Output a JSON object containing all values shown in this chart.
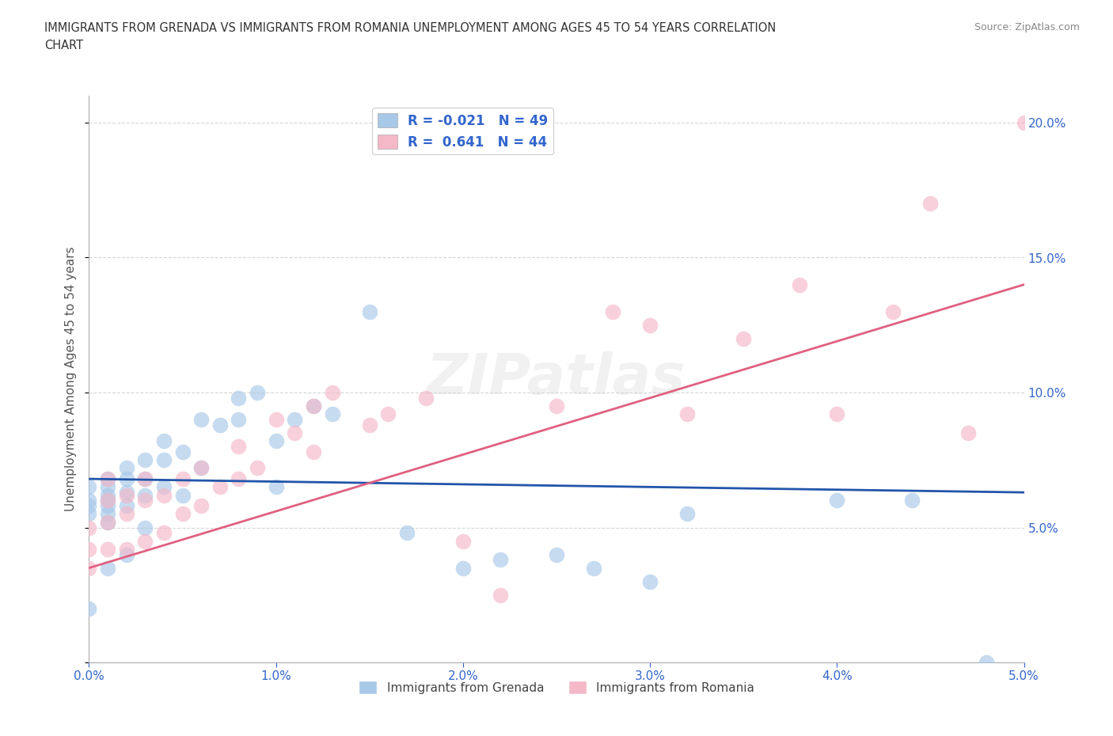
{
  "title": "IMMIGRANTS FROM GRENADA VS IMMIGRANTS FROM ROMANIA UNEMPLOYMENT AMONG AGES 45 TO 54 YEARS CORRELATION\nCHART",
  "source_text": "Source: ZipAtlas.com",
  "ylabel": "Unemployment Among Ages 45 to 54 years",
  "xlim": [
    0.0,
    0.05
  ],
  "ylim": [
    0.0,
    0.21
  ],
  "xticks": [
    0.0,
    0.01,
    0.02,
    0.03,
    0.04,
    0.05
  ],
  "yticks": [
    0.0,
    0.05,
    0.1,
    0.15,
    0.2
  ],
  "ytick_labels": [
    "",
    "5.0%",
    "10.0%",
    "15.0%",
    "20.0%"
  ],
  "xtick_labels": [
    "0.0%",
    "1.0%",
    "2.0%",
    "3.0%",
    "4.0%",
    "5.0%"
  ],
  "grenada_color": "#a8c8e8",
  "romania_color": "#f4b8c8",
  "grenada_line_color": "#2255aa",
  "romania_line_color": "#e06080",
  "R_grenada": -0.021,
  "N_grenada": 49,
  "R_romania": 0.641,
  "N_romania": 44,
  "watermark": "ZIPatlas",
  "background_color": "#ffffff",
  "grid_color": "#bbbbbb",
  "title_color": "#333333",
  "axis_label_color": "#3366cc",
  "grenada_scatter_x": [
    0.0,
    0.0,
    0.0,
    0.0,
    0.0,
    0.001,
    0.001,
    0.001,
    0.001,
    0.001,
    0.001,
    0.001,
    0.001,
    0.002,
    0.002,
    0.002,
    0.002,
    0.002,
    0.003,
    0.003,
    0.003,
    0.003,
    0.004,
    0.004,
    0.004,
    0.005,
    0.005,
    0.006,
    0.006,
    0.007,
    0.008,
    0.008,
    0.009,
    0.01,
    0.01,
    0.011,
    0.012,
    0.013,
    0.015,
    0.017,
    0.02,
    0.022,
    0.025,
    0.027,
    0.03,
    0.032,
    0.04,
    0.044,
    0.048
  ],
  "grenada_scatter_y": [
    0.065,
    0.06,
    0.058,
    0.055,
    0.02,
    0.068,
    0.065,
    0.062,
    0.06,
    0.058,
    0.055,
    0.052,
    0.035,
    0.072,
    0.068,
    0.063,
    0.058,
    0.04,
    0.075,
    0.068,
    0.062,
    0.05,
    0.082,
    0.075,
    0.065,
    0.078,
    0.062,
    0.09,
    0.072,
    0.088,
    0.098,
    0.09,
    0.1,
    0.082,
    0.065,
    0.09,
    0.095,
    0.092,
    0.13,
    0.048,
    0.035,
    0.038,
    0.04,
    0.035,
    0.03,
    0.055,
    0.06,
    0.06,
    0.0
  ],
  "romania_scatter_x": [
    0.0,
    0.0,
    0.0,
    0.001,
    0.001,
    0.001,
    0.001,
    0.002,
    0.002,
    0.002,
    0.003,
    0.003,
    0.003,
    0.004,
    0.004,
    0.005,
    0.005,
    0.006,
    0.006,
    0.007,
    0.008,
    0.008,
    0.009,
    0.01,
    0.011,
    0.012,
    0.012,
    0.013,
    0.015,
    0.016,
    0.018,
    0.02,
    0.022,
    0.025,
    0.028,
    0.03,
    0.032,
    0.035,
    0.038,
    0.04,
    0.043,
    0.045,
    0.047,
    0.05
  ],
  "romania_scatter_y": [
    0.05,
    0.042,
    0.035,
    0.068,
    0.06,
    0.052,
    0.042,
    0.062,
    0.055,
    0.042,
    0.068,
    0.06,
    0.045,
    0.062,
    0.048,
    0.068,
    0.055,
    0.072,
    0.058,
    0.065,
    0.08,
    0.068,
    0.072,
    0.09,
    0.085,
    0.095,
    0.078,
    0.1,
    0.088,
    0.092,
    0.098,
    0.045,
    0.025,
    0.095,
    0.13,
    0.125,
    0.092,
    0.12,
    0.14,
    0.092,
    0.13,
    0.17,
    0.085,
    0.2
  ],
  "grenada_line_y0": 0.068,
  "grenada_line_y1": 0.063,
  "romania_line_y0": 0.035,
  "romania_line_y1": 0.14
}
